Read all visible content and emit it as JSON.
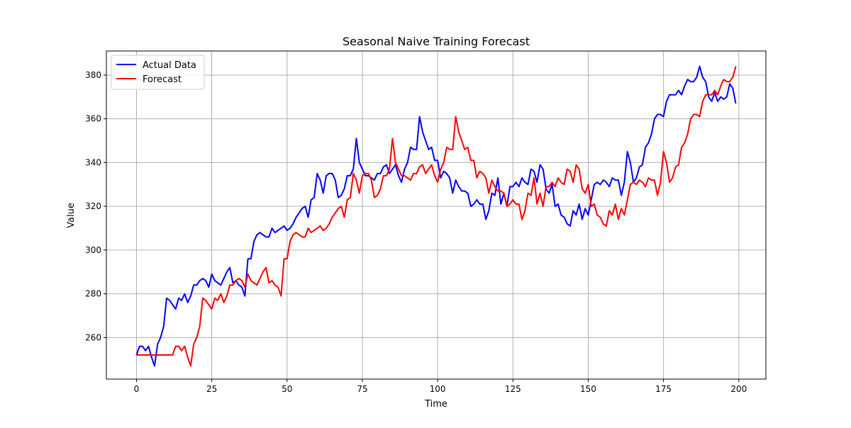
{
  "chart_data": {
    "type": "line",
    "title": "Seasonal Naive Training Forecast",
    "xlabel": "Time",
    "ylabel": "Value",
    "xlim": [
      -10,
      209
    ],
    "ylim": [
      241,
      391
    ],
    "xticks": [
      0,
      25,
      50,
      75,
      100,
      125,
      150,
      175,
      200
    ],
    "yticks": [
      260,
      280,
      300,
      320,
      340,
      360,
      380
    ],
    "grid": true,
    "legend_position": "upper-left",
    "series": [
      {
        "name": "Actual Data",
        "color": "#0000ff",
        "x_start": 0,
        "values": [
          252,
          256,
          256,
          254,
          256,
          251,
          247,
          257,
          260,
          265,
          278,
          277,
          275,
          273,
          278,
          277,
          280,
          276,
          279,
          284,
          284,
          286,
          287,
          286,
          283,
          289,
          286,
          285,
          284,
          287,
          290,
          292,
          285,
          286,
          284,
          283,
          279,
          296,
          296,
          304,
          307,
          308,
          307,
          306,
          306,
          310,
          308,
          309,
          310,
          311,
          309,
          310,
          312,
          315,
          317,
          319,
          320,
          315,
          323,
          324,
          335,
          332,
          326,
          334,
          335,
          335,
          332,
          324,
          325,
          328,
          334,
          334,
          337,
          351,
          340,
          337,
          334,
          334,
          333,
          332,
          335,
          335,
          338,
          339,
          335,
          337,
          339,
          334,
          331,
          337,
          340,
          347,
          346,
          346,
          361,
          354,
          350,
          346,
          347,
          341,
          341,
          333,
          336,
          335,
          333,
          326,
          332,
          329,
          327,
          327,
          326,
          320,
          321,
          323,
          321,
          321,
          314,
          318,
          326,
          325,
          333,
          321,
          326,
          320,
          329,
          329,
          331,
          329,
          333,
          331,
          330,
          337,
          336,
          331,
          339,
          337,
          328,
          326,
          330,
          320,
          321,
          316,
          315,
          312,
          311,
          318,
          316,
          321,
          314,
          319,
          316,
          323,
          330,
          331,
          330,
          332,
          331,
          329,
          333,
          332,
          332,
          325,
          331,
          345,
          340,
          331,
          333,
          338,
          339,
          347,
          349,
          353,
          360,
          362,
          362,
          361,
          368,
          371,
          371,
          371,
          373,
          371,
          375,
          378,
          377,
          377,
          379,
          384,
          379,
          377,
          370,
          368,
          372,
          368,
          370,
          369,
          370,
          376,
          374,
          367
        ]
      },
      {
        "name": "Forecast",
        "color": "#ff0000",
        "x_start": 0,
        "values": [
          252,
          252,
          252,
          252,
          252,
          252,
          252,
          252,
          252,
          252,
          252,
          252,
          252,
          256,
          256,
          254,
          256,
          251,
          247,
          257,
          260,
          265,
          278,
          277,
          275,
          273,
          278,
          277,
          280,
          276,
          279,
          284,
          284,
          286,
          287,
          286,
          283,
          289,
          286,
          285,
          284,
          287,
          290,
          292,
          285,
          286,
          284,
          283,
          279,
          296,
          296,
          304,
          307,
          308,
          307,
          306,
          306,
          310,
          308,
          309,
          310,
          311,
          309,
          310,
          312,
          315,
          317,
          319,
          320,
          315,
          323,
          324,
          335,
          332,
          326,
          334,
          335,
          335,
          332,
          324,
          325,
          328,
          334,
          334,
          337,
          351,
          340,
          337,
          334,
          334,
          333,
          332,
          335,
          335,
          338,
          339,
          335,
          337,
          339,
          334,
          331,
          337,
          340,
          347,
          346,
          346,
          361,
          354,
          350,
          346,
          347,
          341,
          341,
          333,
          336,
          335,
          333,
          326,
          332,
          329,
          327,
          327,
          326,
          320,
          321,
          323,
          321,
          321,
          314,
          318,
          326,
          325,
          333,
          321,
          326,
          320,
          329,
          329,
          331,
          329,
          333,
          331,
          330,
          337,
          336,
          331,
          339,
          337,
          328,
          326,
          330,
          320,
          321,
          316,
          315,
          312,
          311,
          318,
          316,
          321,
          314,
          319,
          316,
          323,
          330,
          331,
          330,
          332,
          331,
          329,
          333,
          332,
          332,
          325,
          331,
          345,
          340,
          331,
          333,
          338,
          339,
          347,
          349,
          353,
          360,
          362,
          362,
          361,
          368,
          371,
          371,
          371,
          373,
          371,
          375,
          378,
          377,
          377,
          379,
          384
        ]
      }
    ]
  }
}
